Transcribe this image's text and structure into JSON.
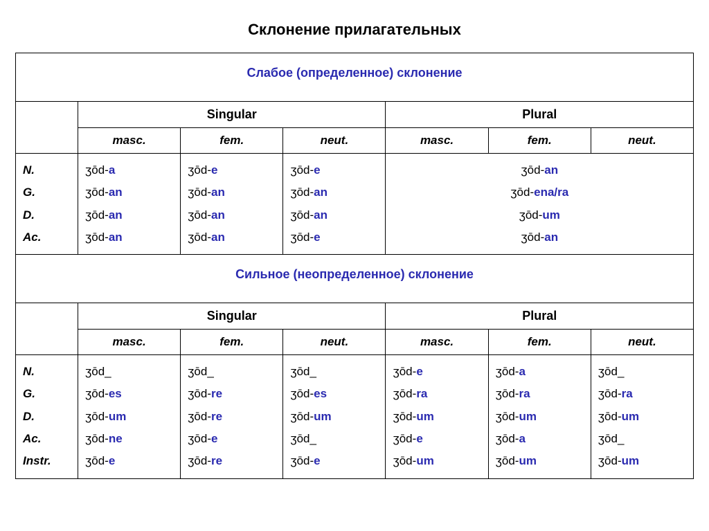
{
  "title": "Склонение прилагательных",
  "stem": "ʒōd",
  "plain_suffix": "_",
  "weak": {
    "header": "Слабое (определенное) склонение",
    "number_labels": {
      "sg": "Singular",
      "pl": "Plural"
    },
    "gender_labels": {
      "masc": "masc.",
      "fem": "fem.",
      "neut": "neut."
    },
    "cases": [
      "N.",
      "G.",
      "D.",
      "Ac."
    ],
    "sg": {
      "masc": [
        "a",
        "an",
        "an",
        "an"
      ],
      "fem": [
        "e",
        "an",
        "an",
        "an"
      ],
      "neut": [
        "e",
        "an",
        "an",
        "e"
      ]
    },
    "pl_merged": [
      "an",
      "ena/ra",
      "um",
      "an"
    ]
  },
  "strong": {
    "header": "Сильное (неопределенное) склонение",
    "number_labels": {
      "sg": "Singular",
      "pl": "Plural"
    },
    "gender_labels": {
      "masc": "masc.",
      "fem": "fem.",
      "neut": "neut."
    },
    "cases": [
      "N.",
      "G.",
      "D.",
      "Ac.",
      "Instr."
    ],
    "sg": {
      "masc": [
        "_",
        "es",
        "um",
        "ne",
        "e"
      ],
      "fem": [
        "_",
        "re",
        "re",
        "e",
        "re"
      ],
      "neut": [
        "_",
        "es",
        "um",
        "_",
        "e"
      ]
    },
    "pl": {
      "masc": [
        "e",
        "ra",
        "um",
        "e",
        "um"
      ],
      "fem": [
        "a",
        "ra",
        "um",
        "a",
        "um"
      ],
      "neut": [
        "_",
        "ra",
        "um",
        "_",
        "um"
      ]
    }
  }
}
